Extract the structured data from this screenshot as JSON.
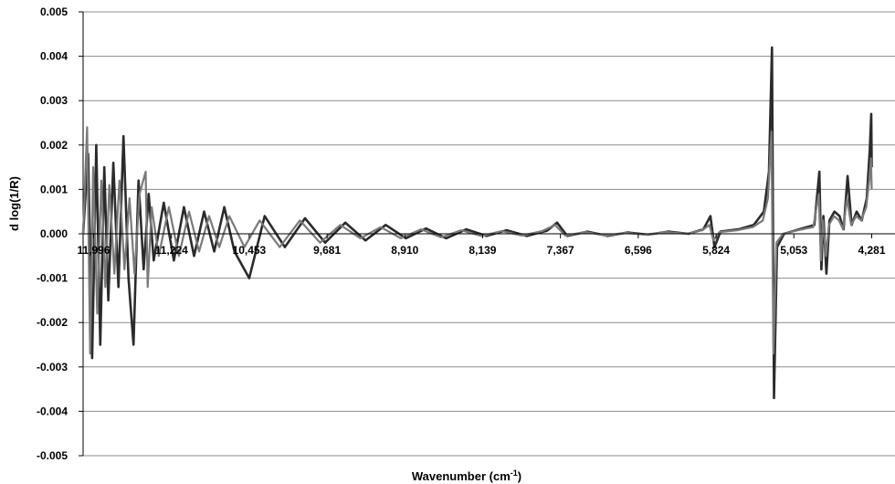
{
  "chart_data": {
    "type": "line",
    "title": "",
    "xlabel_main": "Wavenumber (cm",
    "xlabel_sup": "-1",
    "xlabel_end": ")",
    "ylabel": "d log(1/R)",
    "ylim": [
      -0.005,
      0.005
    ],
    "xlim": [
      12100,
      4050
    ],
    "x_reversed": true,
    "grid": "horizontal",
    "legend": "none",
    "y_ticks": [
      "0.005",
      "0.004",
      "0.003",
      "0.002",
      "0.001",
      "0.000",
      "-0.001",
      "-0.002",
      "-0.003",
      "-0.004",
      "-0.005"
    ],
    "y_tick_values": [
      0.005,
      0.004,
      0.003,
      0.002,
      0.001,
      0,
      -0.001,
      -0.002,
      -0.003,
      -0.004,
      -0.005
    ],
    "x_ticks": [
      "11,996",
      "11,224",
      "10,453",
      "9,681",
      "8,910",
      "8,139",
      "7,367",
      "6,596",
      "5,824",
      "5,053",
      "4,281"
    ],
    "x_tick_values": [
      11996,
      11224,
      10453,
      9681,
      8910,
      8139,
      7367,
      6596,
      5824,
      5053,
      4281
    ],
    "series": [
      {
        "color": "#2b2b2b",
        "points": [
          [
            12100,
            0
          ],
          [
            12050,
            0.0018
          ],
          [
            12010,
            -0.0028
          ],
          [
            11970,
            0.002
          ],
          [
            11930,
            -0.0025
          ],
          [
            11890,
            0.0015
          ],
          [
            11850,
            -0.0015
          ],
          [
            11800,
            0.0016
          ],
          [
            11750,
            -0.0012
          ],
          [
            11700,
            0.0022
          ],
          [
            11650,
            -0.001
          ],
          [
            11600,
            -0.0025
          ],
          [
            11550,
            0.0012
          ],
          [
            11500,
            -0.0008
          ],
          [
            11450,
            0.0009
          ],
          [
            11400,
            -0.0006
          ],
          [
            11300,
            0.0007
          ],
          [
            11200,
            -0.0006
          ],
          [
            11100,
            0.0006
          ],
          [
            11000,
            -0.0005
          ],
          [
            10900,
            0.0005
          ],
          [
            10800,
            -0.0004
          ],
          [
            10700,
            0.0006
          ],
          [
            10600,
            -0.0004
          ],
          [
            10453,
            -0.001
          ],
          [
            10300,
            0.0004
          ],
          [
            10100,
            -0.0003
          ],
          [
            9900,
            0.00035
          ],
          [
            9700,
            -0.0002
          ],
          [
            9500,
            0.00025
          ],
          [
            9300,
            -0.00015
          ],
          [
            9100,
            0.0002
          ],
          [
            8900,
            -0.0001
          ],
          [
            8700,
            0.00012
          ],
          [
            8500,
            -0.0001
          ],
          [
            8300,
            0.0001
          ],
          [
            8100,
            -5e-05
          ],
          [
            7900,
            8e-05
          ],
          [
            7700,
            -5e-05
          ],
          [
            7500,
            7e-05
          ],
          [
            7400,
            0.00025
          ],
          [
            7300,
            -5e-05
          ],
          [
            7100,
            5e-05
          ],
          [
            6900,
            -5e-05
          ],
          [
            6700,
            3e-05
          ],
          [
            6500,
            -2e-05
          ],
          [
            6300,
            5e-05
          ],
          [
            6100,
            0.0
          ],
          [
            5950,
            0.0001
          ],
          [
            5880,
            0.0004
          ],
          [
            5840,
            -0.0003
          ],
          [
            5780,
            5e-05
          ],
          [
            5600,
            0.0001
          ],
          [
            5450,
            0.0002
          ],
          [
            5350,
            0.0005
          ],
          [
            5300,
            0.0014
          ],
          [
            5270,
            0.0042
          ],
          [
            5250,
            -0.0037
          ],
          [
            5220,
            -0.0003
          ],
          [
            5150,
            0.0
          ],
          [
            5000,
            0.0001
          ],
          [
            4850,
            0.0002
          ],
          [
            4800,
            0.0014
          ],
          [
            4780,
            -0.0008
          ],
          [
            4760,
            0.0004
          ],
          [
            4730,
            -0.0009
          ],
          [
            4700,
            0.0003
          ],
          [
            4650,
            0.0005
          ],
          [
            4600,
            0.0004
          ],
          [
            4560,
            0.0001
          ],
          [
            4520,
            0.0013
          ],
          [
            4480,
            0.0002
          ],
          [
            4430,
            0.0005
          ],
          [
            4380,
            0.0003
          ],
          [
            4330,
            0.0008
          ],
          [
            4300,
            0.0019
          ],
          [
            4285,
            0.0027
          ],
          [
            4281,
            0.0015
          ]
        ]
      },
      {
        "color": "#7a7a7a",
        "points": [
          [
            12100,
            0
          ],
          [
            12060,
            0.0024
          ],
          [
            12030,
            -0.0027
          ],
          [
            12000,
            0.0015
          ],
          [
            11960,
            -0.0018
          ],
          [
            11920,
            0.0012
          ],
          [
            11880,
            -0.0012
          ],
          [
            11840,
            0.0011
          ],
          [
            11790,
            -0.0009
          ],
          [
            11740,
            0.0012
          ],
          [
            11690,
            -0.0008
          ],
          [
            11640,
            0.0008
          ],
          [
            11590,
            -0.0009
          ],
          [
            11540,
            0.0009
          ],
          [
            11480,
            0.0014
          ],
          [
            11460,
            -0.0012
          ],
          [
            11420,
            0.0006
          ],
          [
            11350,
            -0.0005
          ],
          [
            11250,
            0.0006
          ],
          [
            11150,
            -0.0005
          ],
          [
            11050,
            0.0005
          ],
          [
            10950,
            -0.0004
          ],
          [
            10850,
            0.0004
          ],
          [
            10750,
            -0.0003
          ],
          [
            10650,
            0.0004
          ],
          [
            10500,
            -0.0003
          ],
          [
            10350,
            0.0003
          ],
          [
            10150,
            -0.0003
          ],
          [
            9950,
            0.0003
          ],
          [
            9750,
            -0.0002
          ],
          [
            9550,
            0.0002
          ],
          [
            9350,
            -0.0001
          ],
          [
            9150,
            0.00015
          ],
          [
            8950,
            -0.0001
          ],
          [
            8750,
            0.0001
          ],
          [
            8550,
            -8e-05
          ],
          [
            8350,
            8e-05
          ],
          [
            8150,
            -5e-05
          ],
          [
            7950,
            6e-05
          ],
          [
            7750,
            -4e-05
          ],
          [
            7550,
            6e-05
          ],
          [
            7420,
            0.0002
          ],
          [
            7320,
            -4e-05
          ],
          [
            7120,
            4e-05
          ],
          [
            6920,
            -4e-05
          ],
          [
            6720,
            2e-05
          ],
          [
            6520,
            -2e-05
          ],
          [
            6320,
            4e-05
          ],
          [
            6120,
            0.0
          ],
          [
            5960,
            8e-05
          ],
          [
            5890,
            0.0002
          ],
          [
            5850,
            -0.00015
          ],
          [
            5790,
            4e-05
          ],
          [
            5610,
            8e-05
          ],
          [
            5460,
            0.00015
          ],
          [
            5360,
            0.0003
          ],
          [
            5310,
            0.0008
          ],
          [
            5275,
            0.0023
          ],
          [
            5255,
            -0.0027
          ],
          [
            5225,
            -0.0002
          ],
          [
            5160,
            0.0
          ],
          [
            5010,
            8e-05
          ],
          [
            4860,
            0.00015
          ],
          [
            4805,
            0.0009
          ],
          [
            4785,
            -0.0006
          ],
          [
            4765,
            0.0003
          ],
          [
            4735,
            -0.0005
          ],
          [
            4705,
            0.0002
          ],
          [
            4655,
            0.0004
          ],
          [
            4605,
            0.0003
          ],
          [
            4565,
            0.0001
          ],
          [
            4525,
            0.0008
          ],
          [
            4485,
            0.0002
          ],
          [
            4435,
            0.0004
          ],
          [
            4385,
            0.0003
          ],
          [
            4335,
            0.0006
          ],
          [
            4305,
            0.0012
          ],
          [
            4288,
            0.0017
          ],
          [
            4281,
            0.001
          ]
        ]
      }
    ]
  }
}
